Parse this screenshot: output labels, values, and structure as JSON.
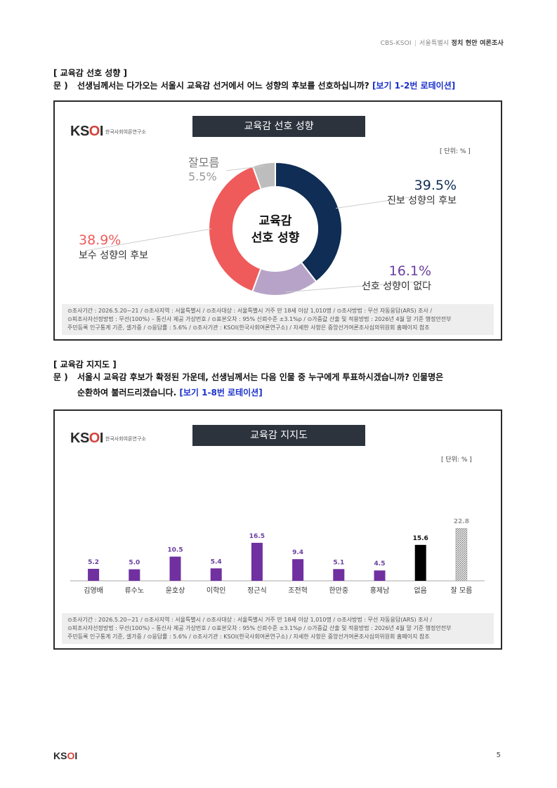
{
  "header": {
    "left": "CBS-KSOI",
    "mid": "서울특별시",
    "right": "정치 현안 여론조사"
  },
  "section1": {
    "title": "[ 교육감 선호 성향 ]",
    "q_label": "문 )",
    "question": "선생님께서는 다가오는 서울시 교육감 선거에서 어느 성향의 후보를 선호하십니까?",
    "rotation": "[보기 1-2번 로테이션]"
  },
  "chart1": {
    "logo": "KSOI",
    "org": "한국사회여론연구소",
    "title": "교육감 선호 성향",
    "unit": "[ 단위: % ]",
    "center_line1": "교육감",
    "center_line2": "선호 성향"
  },
  "section2": {
    "title": "[ 교육감 지지도 ]",
    "q_label": "문 )",
    "question_line1": "서울시 교육감 후보가 확정된 가운데, 선생님께서는 다음 인물 중 누구에게 투표하시겠습니까? 인물명은",
    "question_line2": "순환하여 불러드리겠습니다.",
    "rotation": "[보기 1-8번 로테이션]"
  },
  "chart2": {
    "logo": "KSOI",
    "org": "한국사회여론연구소",
    "title": "교육감 지지도",
    "unit": "[ 단위: % ]"
  },
  "footnote": {
    "line1": "⊙조사기간 : 2026.5.20~21 / ⊙조사지역 : 서울특별시 / ⊙조사대상 : 서울특별시 거주 만 18세 이상 1,010명 / ⊙조사방법 : 무선 자동응답(ARS) 조사 /",
    "line2": "⊙피조사자선정방법 : 무선(100%) – 통신사 제공 가상번호 / ⊙표본오차 : 95% 신뢰수준 ±3.1%p / ⊙가중값 산출 및 적용방법 : 2026년 4월 말 기준 행정안전부",
    "line3": "주민등록 인구통계 기준, 셀가중 / ⊙응답률 : 5.6% / ⊙조사기관 : KSOI(한국사회여론연구소) / 자세한 사항은 중앙선거여론조사심의위원회 홈페이지 참조"
  },
  "page_footer": {
    "logo": "KSOI",
    "page": "5"
  },
  "chart_data": [
    {
      "type": "pie",
      "title": "교육감 선호 성향",
      "categories": [
        "진보 성향의 후보",
        "선호 성향이 없다",
        "보수 성향의 후보",
        "잘모름"
      ],
      "values": [
        39.5,
        16.1,
        38.9,
        5.5
      ],
      "value_labels": [
        "39.5%",
        "16.1%",
        "38.9%",
        "5.5%"
      ],
      "colors": [
        "#0f2d55",
        "#b7a3c8",
        "#ef5b5b",
        "#bdbdbd"
      ],
      "label_colors": [
        "#0f2d55",
        "#6a3fa0",
        "#ef5b5b",
        "#999999"
      ]
    },
    {
      "type": "bar",
      "title": "교육감 지지도",
      "categories": [
        "김영배",
        "류수노",
        "윤호상",
        "이학인",
        "정근식",
        "조전혁",
        "한만중",
        "홍제남",
        "없음",
        "잘 모름"
      ],
      "values": [
        5.2,
        5.0,
        10.5,
        5.4,
        16.5,
        9.4,
        5.1,
        4.5,
        15.6,
        22.8
      ],
      "value_labels": [
        "5.2",
        "5.0",
        "10.5",
        "5.4",
        "16.5",
        "9.4",
        "5.1",
        "4.5",
        "15.6",
        "22.8"
      ],
      "colors": [
        "#7030a0",
        "#7030a0",
        "#7030a0",
        "#7030a0",
        "#7030a0",
        "#7030a0",
        "#7030a0",
        "#7030a0",
        "#000000",
        "hatch"
      ]
    }
  ]
}
